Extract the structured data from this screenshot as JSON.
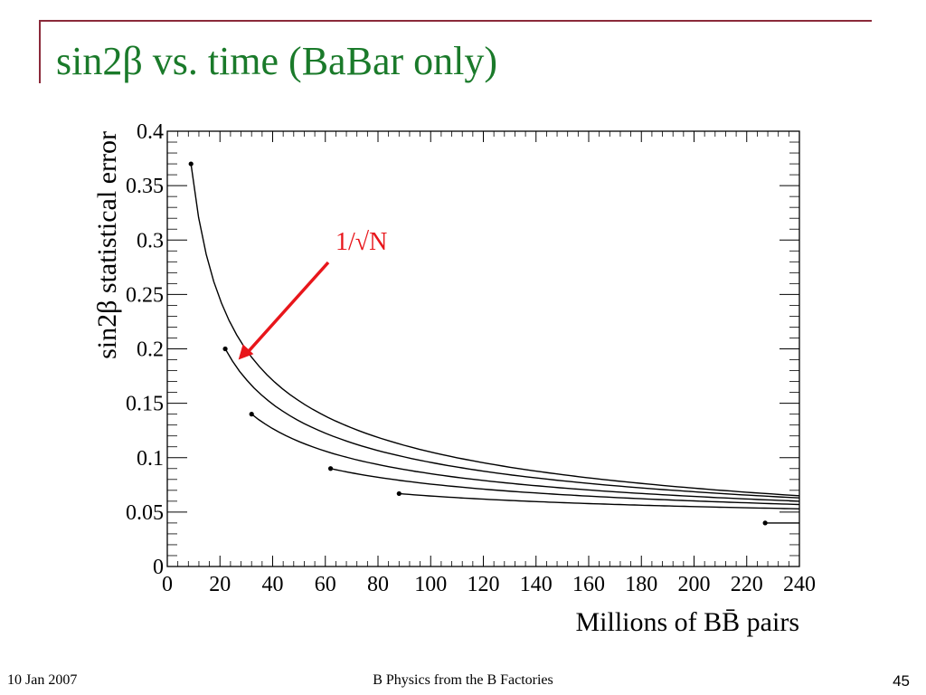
{
  "slide": {
    "title": "sin2β vs. time (BaBar only)",
    "footer_date": "10 Jan 2007",
    "footer_title": "B Physics from the B Factories",
    "page_number": "45"
  },
  "colors": {
    "title": "#1a7a2a",
    "decor": "#8b2a3a",
    "arrow": "#e8161b",
    "curve": "#000000"
  },
  "chart_data": {
    "type": "line",
    "title": "",
    "xlabel": "Millions of BB̄ pairs",
    "ylabel": "sin2β statistical error",
    "xlim": [
      0,
      240
    ],
    "ylim": [
      0,
      0.4
    ],
    "xticks": [
      0,
      20,
      40,
      60,
      80,
      100,
      120,
      140,
      160,
      180,
      200,
      220,
      240
    ],
    "yticks": [
      "0",
      "0.05",
      "0.1",
      "0.15",
      "0.2",
      "0.25",
      "0.3",
      "0.35",
      "0.4"
    ],
    "grid": false,
    "series": [
      {
        "x": [
          9,
          240
        ],
        "y": [
          0.37,
          0.065
        ]
      },
      {
        "x": [
          22,
          240
        ],
        "y": [
          0.2,
          0.063
        ]
      },
      {
        "x": [
          32,
          240
        ],
        "y": [
          0.14,
          0.06
        ]
      },
      {
        "x": [
          62,
          240
        ],
        "y": [
          0.09,
          0.057
        ]
      },
      {
        "x": [
          88,
          240
        ],
        "y": [
          0.067,
          0.053
        ]
      },
      {
        "x": [
          227,
          240
        ],
        "y": [
          0.04,
          0.04
        ]
      }
    ],
    "annotations": [
      {
        "text": "1/√N",
        "color": "#e8161b",
        "points_to": {
          "x": 27,
          "y": 0.19
        }
      }
    ]
  }
}
